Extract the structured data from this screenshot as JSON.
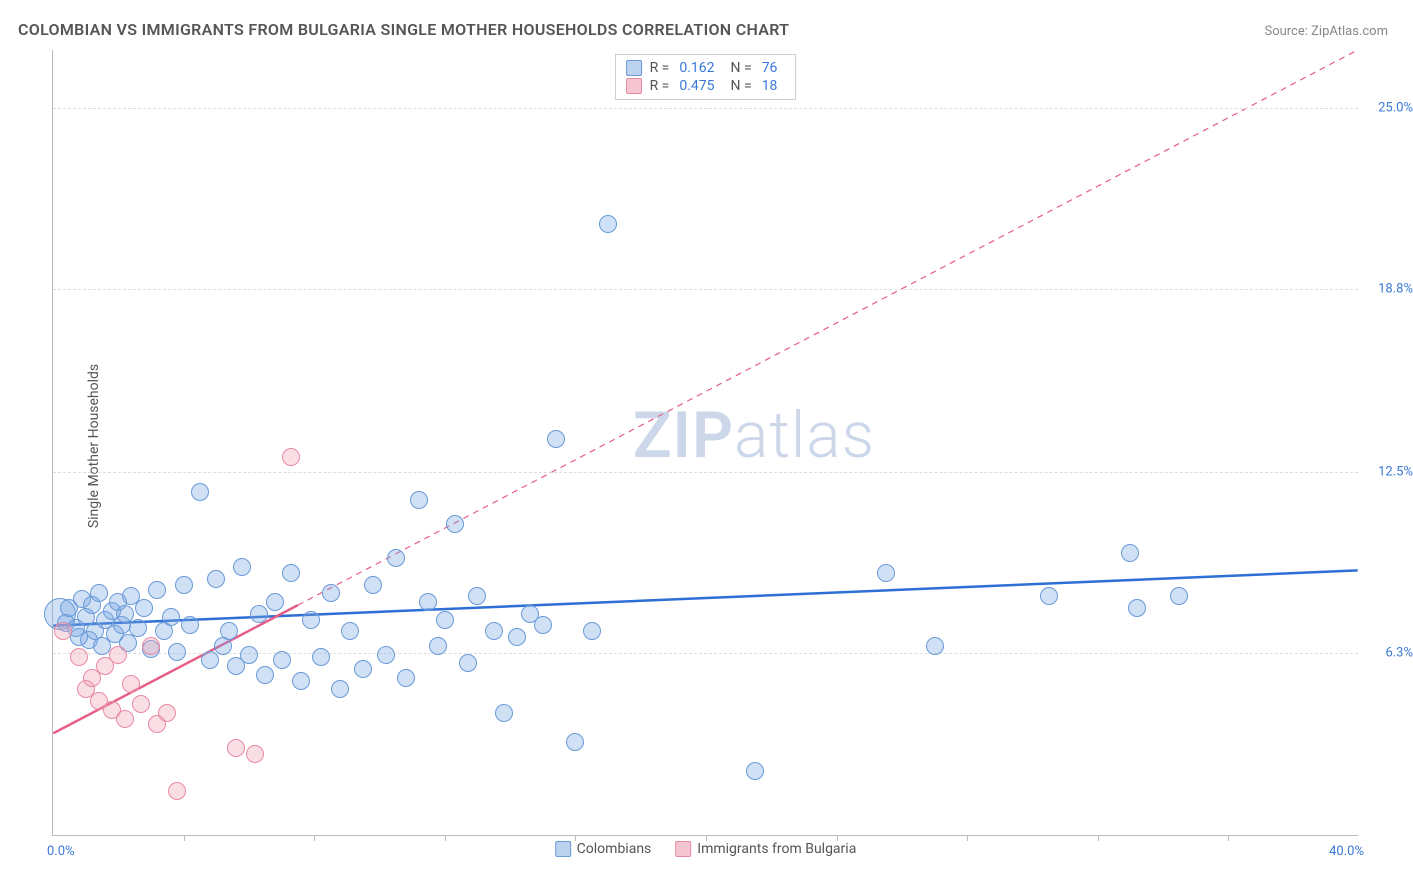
{
  "header": {
    "title": "COLOMBIAN VS IMMIGRANTS FROM BULGARIA SINGLE MOTHER HOUSEHOLDS CORRELATION CHART",
    "source": "Source: ZipAtlas.com"
  },
  "chart": {
    "type": "scatter",
    "ylabel": "Single Mother Households",
    "xlim": [
      0,
      40
    ],
    "ylim": [
      0,
      27
    ],
    "xaxis_min_label": "0.0%",
    "xaxis_max_label": "40.0%",
    "xticks": [
      4,
      8,
      12,
      16,
      20,
      24,
      28,
      32,
      36
    ],
    "y_gridlines": [
      {
        "value": 6.3,
        "label": "6.3%"
      },
      {
        "value": 12.5,
        "label": "12.5%"
      },
      {
        "value": 18.8,
        "label": "18.8%"
      },
      {
        "value": 25.0,
        "label": "25.0%"
      }
    ],
    "background_color": "#ffffff",
    "grid_color": "#dddddd",
    "axis_color": "#bbbbbb",
    "point_radius": 9,
    "watermark": {
      "zip": "ZIP",
      "atlas": "atlas"
    },
    "series": [
      {
        "key": "colombians",
        "label": "Colombians",
        "fill": "rgba(120,165,225,0.35)",
        "stroke": "#6a9ad8",
        "line_color": "#2e6fd6",
        "line_width": 2.5,
        "line_dash": "0",
        "R": "0.162",
        "N": "76",
        "trend": {
          "x1": 0,
          "y1": 7.2,
          "x2": 40,
          "y2": 9.1
        },
        "swatch_fill": "#bcd3f0",
        "swatch_stroke": "#6a9ad8",
        "points": [
          {
            "x": 0.2,
            "y": 7.6,
            "r": 16
          },
          {
            "x": 0.4,
            "y": 7.3
          },
          {
            "x": 0.5,
            "y": 7.8
          },
          {
            "x": 0.7,
            "y": 7.1
          },
          {
            "x": 0.8,
            "y": 6.8
          },
          {
            "x": 0.9,
            "y": 8.1
          },
          {
            "x": 1.0,
            "y": 7.5
          },
          {
            "x": 1.1,
            "y": 6.7
          },
          {
            "x": 1.2,
            "y": 7.9
          },
          {
            "x": 1.3,
            "y": 7.0
          },
          {
            "x": 1.4,
            "y": 8.3
          },
          {
            "x": 1.5,
            "y": 6.5
          },
          {
            "x": 1.6,
            "y": 7.4
          },
          {
            "x": 1.8,
            "y": 7.7
          },
          {
            "x": 1.9,
            "y": 6.9
          },
          {
            "x": 2.0,
            "y": 8.0
          },
          {
            "x": 2.1,
            "y": 7.2
          },
          {
            "x": 2.2,
            "y": 7.6
          },
          {
            "x": 2.3,
            "y": 6.6
          },
          {
            "x": 2.4,
            "y": 8.2
          },
          {
            "x": 2.6,
            "y": 7.1
          },
          {
            "x": 2.8,
            "y": 7.8
          },
          {
            "x": 3.0,
            "y": 6.4
          },
          {
            "x": 3.2,
            "y": 8.4
          },
          {
            "x": 3.4,
            "y": 7.0
          },
          {
            "x": 3.6,
            "y": 7.5
          },
          {
            "x": 3.8,
            "y": 6.3
          },
          {
            "x": 4.0,
            "y": 8.6
          },
          {
            "x": 4.2,
            "y": 7.2
          },
          {
            "x": 4.5,
            "y": 11.8
          },
          {
            "x": 4.8,
            "y": 6.0
          },
          {
            "x": 5.0,
            "y": 8.8
          },
          {
            "x": 5.2,
            "y": 6.5
          },
          {
            "x": 5.4,
            "y": 7.0
          },
          {
            "x": 5.6,
            "y": 5.8
          },
          {
            "x": 5.8,
            "y": 9.2
          },
          {
            "x": 6.0,
            "y": 6.2
          },
          {
            "x": 6.3,
            "y": 7.6
          },
          {
            "x": 6.5,
            "y": 5.5
          },
          {
            "x": 6.8,
            "y": 8.0
          },
          {
            "x": 7.0,
            "y": 6.0
          },
          {
            "x": 7.3,
            "y": 9.0
          },
          {
            "x": 7.6,
            "y": 5.3
          },
          {
            "x": 7.9,
            "y": 7.4
          },
          {
            "x": 8.2,
            "y": 6.1
          },
          {
            "x": 8.5,
            "y": 8.3
          },
          {
            "x": 8.8,
            "y": 5.0
          },
          {
            "x": 9.1,
            "y": 7.0
          },
          {
            "x": 9.5,
            "y": 5.7
          },
          {
            "x": 9.8,
            "y": 8.6
          },
          {
            "x": 10.2,
            "y": 6.2
          },
          {
            "x": 10.5,
            "y": 9.5
          },
          {
            "x": 10.8,
            "y": 5.4
          },
          {
            "x": 11.2,
            "y": 11.5
          },
          {
            "x": 11.5,
            "y": 8.0
          },
          {
            "x": 11.8,
            "y": 6.5
          },
          {
            "x": 12.0,
            "y": 7.4
          },
          {
            "x": 12.3,
            "y": 10.7
          },
          {
            "x": 12.7,
            "y": 5.9
          },
          {
            "x": 13.0,
            "y": 8.2
          },
          {
            "x": 13.5,
            "y": 7.0
          },
          {
            "x": 13.8,
            "y": 4.2
          },
          {
            "x": 14.2,
            "y": 6.8
          },
          {
            "x": 14.6,
            "y": 7.6
          },
          {
            "x": 15.0,
            "y": 7.2
          },
          {
            "x": 15.4,
            "y": 13.6
          },
          {
            "x": 16.0,
            "y": 3.2
          },
          {
            "x": 16.5,
            "y": 7.0
          },
          {
            "x": 17.0,
            "y": 21.0
          },
          {
            "x": 21.5,
            "y": 2.2
          },
          {
            "x": 25.5,
            "y": 9.0
          },
          {
            "x": 27.0,
            "y": 6.5
          },
          {
            "x": 30.5,
            "y": 8.2
          },
          {
            "x": 33.0,
            "y": 9.7
          },
          {
            "x": 33.2,
            "y": 7.8
          },
          {
            "x": 34.5,
            "y": 8.2
          }
        ]
      },
      {
        "key": "bulgaria",
        "label": "Immigrants from Bulgaria",
        "fill": "rgba(240,160,180,0.35)",
        "stroke": "#e88aa3",
        "line_color": "#e75d86",
        "line_width": 2.5,
        "line_dash": "6 5",
        "R": "0.475",
        "N": "18",
        "trend": {
          "x1": 0,
          "y1": 3.5,
          "x2": 40,
          "y2": 27.0
        },
        "trend_solid_until_x": 7.5,
        "swatch_fill": "#f5c5d2",
        "swatch_stroke": "#e88aa3",
        "points": [
          {
            "x": 0.3,
            "y": 7.0
          },
          {
            "x": 0.8,
            "y": 6.1
          },
          {
            "x": 1.0,
            "y": 5.0
          },
          {
            "x": 1.2,
            "y": 5.4
          },
          {
            "x": 1.4,
            "y": 4.6
          },
          {
            "x": 1.6,
            "y": 5.8
          },
          {
            "x": 1.8,
            "y": 4.3
          },
          {
            "x": 2.0,
            "y": 6.2
          },
          {
            "x": 2.2,
            "y": 4.0
          },
          {
            "x": 2.4,
            "y": 5.2
          },
          {
            "x": 2.7,
            "y": 4.5
          },
          {
            "x": 3.0,
            "y": 6.5
          },
          {
            "x": 3.2,
            "y": 3.8
          },
          {
            "x": 3.5,
            "y": 4.2
          },
          {
            "x": 3.8,
            "y": 1.5
          },
          {
            "x": 5.6,
            "y": 3.0
          },
          {
            "x": 6.2,
            "y": 2.8
          },
          {
            "x": 7.3,
            "y": 13.0
          }
        ]
      }
    ]
  }
}
